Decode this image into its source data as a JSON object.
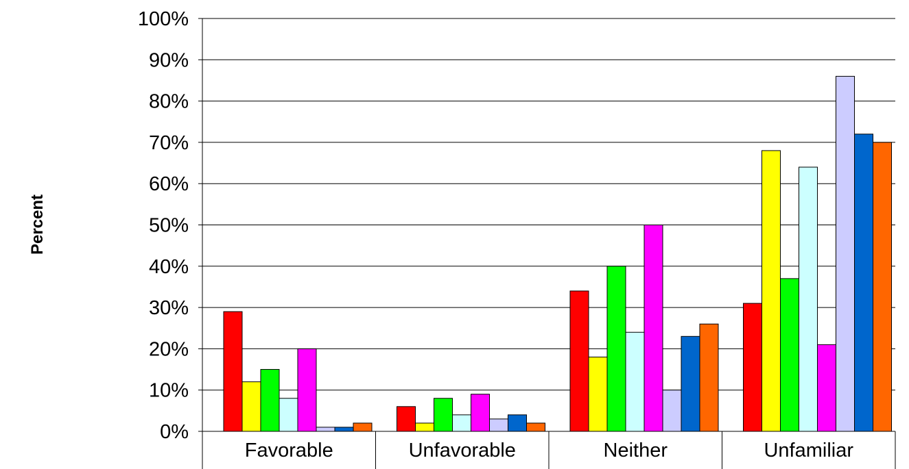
{
  "chart_data": {
    "type": "bar",
    "ylabel": "Percent",
    "ylim": [
      0,
      100
    ],
    "y_ticks": [
      "0%",
      "10%",
      "20%",
      "30%",
      "40%",
      "50%",
      "60%",
      "70%",
      "80%",
      "90%",
      "100%"
    ],
    "categories": [
      "Favorable",
      "Unfavorable",
      "Neither",
      "Unfamiliar"
    ],
    "grid": true,
    "series": [
      {
        "color": "#ff0000",
        "values": [
          29,
          6,
          34,
          31
        ]
      },
      {
        "color": "#ffff00",
        "values": [
          12,
          2,
          18,
          68
        ]
      },
      {
        "color": "#00ff00",
        "values": [
          15,
          8,
          40,
          37
        ]
      },
      {
        "color": "#ccffff",
        "values": [
          8,
          4,
          24,
          64
        ]
      },
      {
        "color": "#ff00ff",
        "values": [
          20,
          9,
          50,
          21
        ]
      },
      {
        "color": "#ccccff",
        "values": [
          1,
          3,
          10,
          86
        ]
      },
      {
        "color": "#0066cc",
        "values": [
          1,
          4,
          23,
          72
        ]
      },
      {
        "color": "#ff6600",
        "values": [
          2,
          2,
          26,
          70
        ]
      }
    ]
  }
}
